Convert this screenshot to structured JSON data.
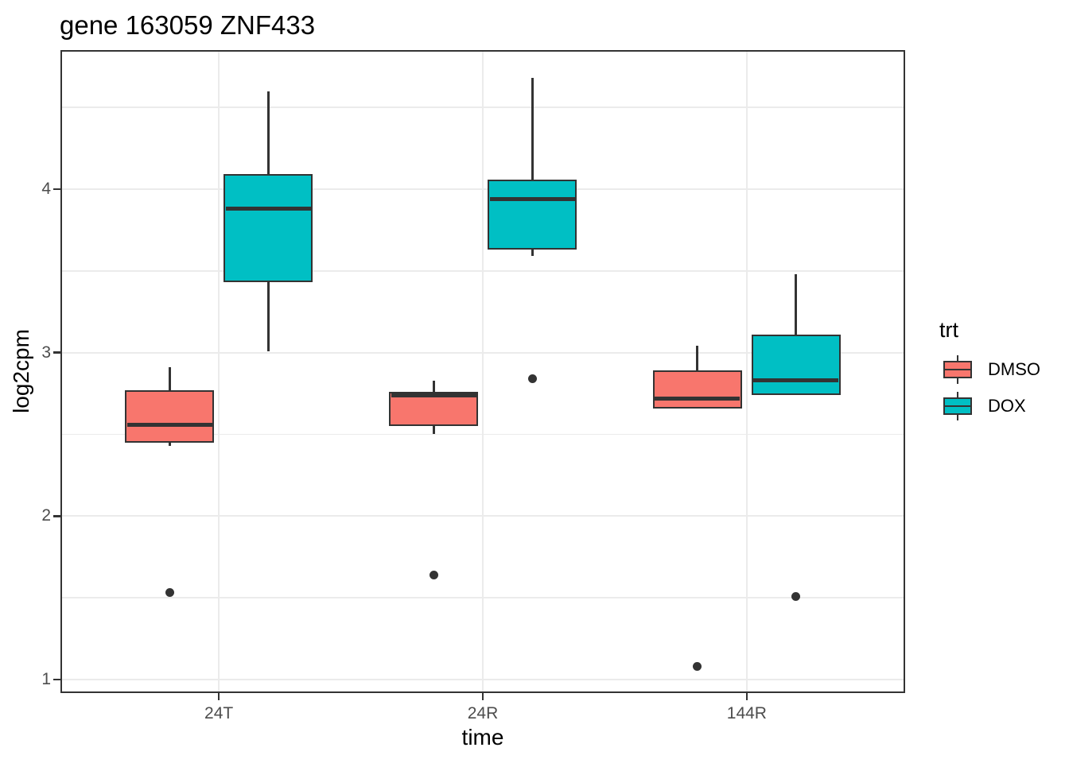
{
  "title": "gene 163059 ZNF433",
  "legend": {
    "title": "trt",
    "entries": [
      {
        "label": "DMSO",
        "color": "#F8766D"
      },
      {
        "label": "DOX",
        "color": "#00BFC4"
      }
    ]
  },
  "colors": {
    "dmso_fill": "#F8766D",
    "dox_fill": "#00BFC4",
    "box_border": "#333333",
    "median": "#333333",
    "outlier": "#333333",
    "grid": "#EBEBEB",
    "panel_border": "#333333",
    "axis_text": "#4D4D4D"
  },
  "chart_data": {
    "type": "boxplot",
    "title": "gene 163059 ZNF433",
    "xlabel": "time",
    "ylabel": "log2cpm",
    "categories": [
      "24T",
      "24R",
      "144R"
    ],
    "y_major_ticks": [
      1,
      2,
      3,
      4
    ],
    "y_minor_ticks": [
      1.5,
      2.5,
      3.5,
      4.5
    ],
    "ylim": [
      0.917,
      4.851
    ],
    "grid": true,
    "legend_position": "right",
    "series": [
      {
        "name": "DMSO",
        "color": "#F8766D",
        "boxes": [
          {
            "category": "24T",
            "whisker_low": 2.43,
            "q1": 2.45,
            "median": 2.56,
            "q3": 2.77,
            "whisker_high": 2.91,
            "outliers": [
              1.53
            ]
          },
          {
            "category": "24R",
            "whisker_low": 2.5,
            "q1": 2.55,
            "median": 2.74,
            "q3": 2.76,
            "whisker_high": 2.83,
            "outliers": [
              1.64
            ]
          },
          {
            "category": "144R",
            "whisker_low": 2.66,
            "q1": 2.66,
            "median": 2.72,
            "q3": 2.89,
            "whisker_high": 3.04,
            "outliers": [
              1.08
            ]
          }
        ]
      },
      {
        "name": "DOX",
        "color": "#00BFC4",
        "boxes": [
          {
            "category": "24T",
            "whisker_low": 3.01,
            "q1": 3.43,
            "median": 3.88,
            "q3": 4.09,
            "whisker_high": 4.6,
            "outliers": []
          },
          {
            "category": "24R",
            "whisker_low": 3.59,
            "q1": 3.63,
            "median": 3.94,
            "q3": 4.06,
            "whisker_high": 4.68,
            "outliers": [
              2.84
            ]
          },
          {
            "category": "144R",
            "whisker_low": 2.74,
            "q1": 2.74,
            "median": 2.83,
            "q3": 3.11,
            "whisker_high": 3.48,
            "outliers": [
              1.51
            ]
          }
        ]
      }
    ]
  }
}
